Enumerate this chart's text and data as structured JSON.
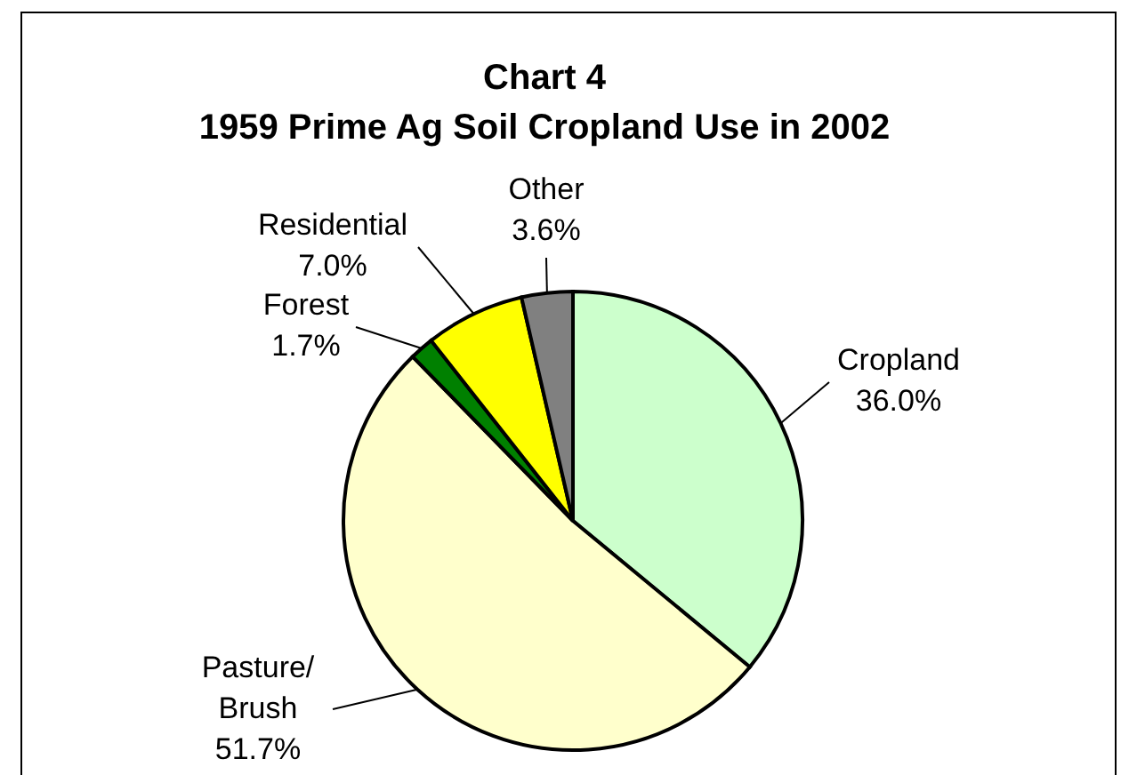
{
  "chart_data": {
    "type": "pie",
    "title": "Chart 4\n1959 Prime Ag Soil Cropland Use in 2002",
    "categories": [
      "Cropland",
      "Pasture/ Brush",
      "Forest",
      "Residential",
      "Other"
    ],
    "values": [
      36.0,
      51.7,
      1.7,
      7.0,
      3.6
    ],
    "value_labels": [
      "36.0%",
      "51.7%",
      "1.7%",
      "7.0%",
      "3.6%"
    ],
    "colors": [
      "#ccffcc",
      "#ffffcc",
      "#008000",
      "#ffff00",
      "#808080"
    ]
  }
}
